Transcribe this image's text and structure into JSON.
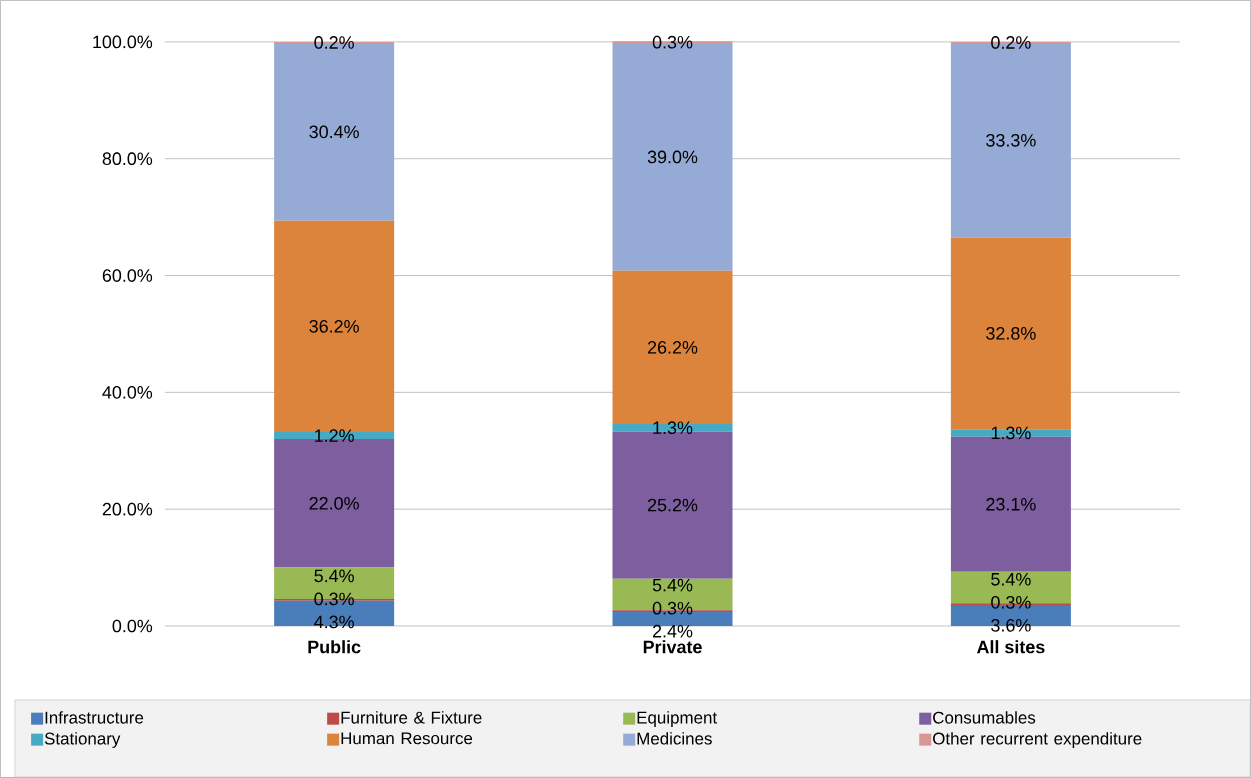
{
  "chart_data": {
    "type": "bar",
    "stacked": true,
    "categories": [
      "Public",
      "Private",
      "All sites"
    ],
    "ylim": [
      0,
      100.1
    ],
    "yticks": [
      {
        "value": 0,
        "label": "0.0%"
      },
      {
        "value": 20,
        "label": "20.0%"
      },
      {
        "value": 40,
        "label": "40.0%"
      },
      {
        "value": 60,
        "label": "60.0%"
      },
      {
        "value": 80,
        "label": "80.0%"
      },
      {
        "value": 100,
        "label": "100.0%"
      }
    ],
    "grid": "y",
    "legend": "bottom",
    "series": [
      {
        "name": "Infrastructure",
        "color": "#4a7ebb",
        "values": [
          4.3,
          2.4,
          3.6
        ],
        "value_labels": [
          "4.3%",
          "2.4%",
          "3.6%"
        ]
      },
      {
        "name": "Furniture & Fixture",
        "color": "#be4b48",
        "values": [
          0.3,
          0.3,
          0.3
        ],
        "value_labels": [
          "0.3%",
          "0.3%",
          "0.3%"
        ]
      },
      {
        "name": "Equipment",
        "color": "#98b954",
        "values": [
          5.4,
          5.4,
          5.4
        ],
        "value_labels": [
          "5.4%",
          "5.4%",
          "5.4%"
        ]
      },
      {
        "name": "Consumables",
        "color": "#7d5fa0",
        "values": [
          22.0,
          25.2,
          23.1
        ],
        "value_labels": [
          "22.0%",
          "25.2%",
          "23.1%"
        ]
      },
      {
        "name": "Stationary",
        "color": "#46aac5",
        "values": [
          1.2,
          1.3,
          1.3
        ],
        "value_labels": [
          "1.2%",
          "1.3%",
          "1.3%"
        ]
      },
      {
        "name": "Human Resource",
        "color": "#dd843c",
        "values": [
          36.2,
          26.2,
          32.8
        ],
        "value_labels": [
          "36.2%",
          "26.2%",
          "32.8%"
        ]
      },
      {
        "name": "Medicines",
        "color": "#95abd5",
        "values": [
          30.4,
          39.0,
          33.3
        ],
        "value_labels": [
          "30.4%",
          "39.0%",
          "33.3%"
        ]
      },
      {
        "name": "Other recurrent expenditure",
        "color": "#d99694",
        "values": [
          0.2,
          0.3,
          0.2
        ],
        "value_labels": [
          "0.2%",
          "0.3%",
          "0.2%"
        ]
      }
    ]
  }
}
